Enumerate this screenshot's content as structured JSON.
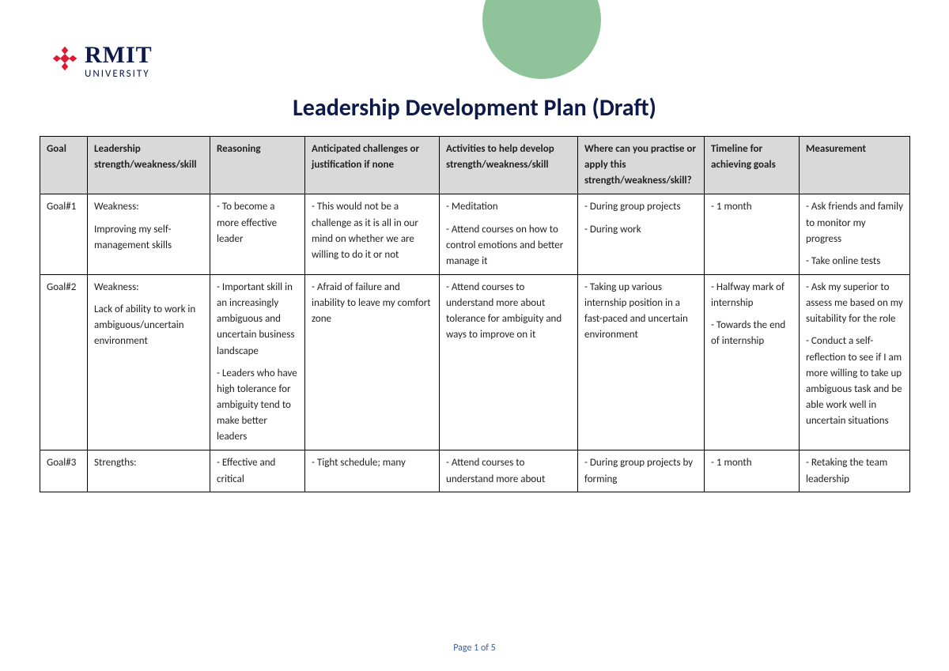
{
  "brand": {
    "name_top": "RMIT",
    "name_bottom": "UNIVERSITY",
    "logo_color": "#e01a33",
    "text_color": "#0d1a4a"
  },
  "decor": {
    "semicircle_color": "#8fc49a"
  },
  "document": {
    "title": "Leadership Development Plan (Draft)",
    "title_color": "#0d1a4a",
    "title_fontsize": 30,
    "footer": "Page 1 of 5",
    "footer_color": "#3a5aa0"
  },
  "table": {
    "header_bg": "#d9d9d9",
    "border_color": "#000000",
    "cell_fontsize": 13,
    "columns": [
      "Goal",
      "Leadership strength/weakness/skill",
      "Reasoning",
      "Anticipated challenges or justification if none",
      "Activities to help develop strength/weakness/skill",
      "Where can you practise or apply this strength/weakness/skill?",
      "Timeline for achieving goals",
      "Measurement"
    ],
    "rows": [
      {
        "goal": "Goal#1",
        "strength": "Weakness:\n\nImproving my self-management skills",
        "reasoning": "- To become a more effective leader",
        "challenges": "- This would not be a challenge as it is all in our mind on whether we are willing to do it or not",
        "activities": "- Meditation\n\n- Attend courses on how to control emotions and better manage it",
        "practise": "- During group projects\n\n- During work",
        "timeline": "- 1 month",
        "measurement": "- Ask friends and family to monitor my progress\n\n- Take online tests"
      },
      {
        "goal": "Goal#2",
        "strength": "Weakness:\n\nLack of ability to work in ambiguous/uncertain environment",
        "reasoning": "- Important skill in an increasingly ambiguous and uncertain business landscape\n\n- Leaders who have high tolerance for ambiguity tend to make better leaders",
        "challenges": "- Afraid of failure and inability to leave my comfort zone",
        "activities": "- Attend courses to understand more about tolerance for ambiguity and ways to improve on it",
        "practise": "- Taking up various internship position in a fast-paced and uncertain environment",
        "timeline": "- Halfway mark of internship\n\n- Towards the end of internship",
        "measurement": "- Ask my superior to assess me based on my suitability for the role\n\n- Conduct a self-reflection to see if I am more willing to take up ambiguous task and be able work well in uncertain situations"
      },
      {
        "goal": "Goal#3",
        "strength": "Strengths:",
        "reasoning": "- Effective and critical",
        "challenges": "- Tight schedule; many",
        "activities": "- Attend courses to understand more about",
        "practise": "- During group projects by forming",
        "timeline": "- 1 month",
        "measurement": "- Retaking the team leadership"
      }
    ]
  }
}
